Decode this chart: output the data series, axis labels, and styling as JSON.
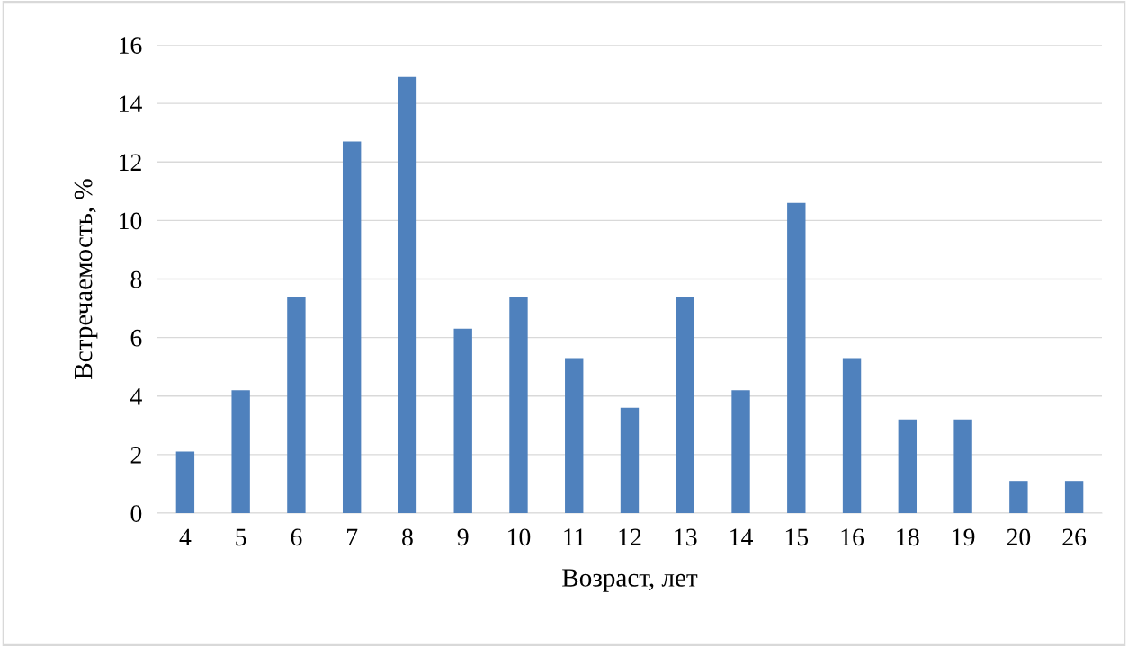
{
  "chart_data": {
    "type": "bar",
    "xlabel": "Возраст, лет",
    "ylabel": "Встречаемость, %",
    "categories": [
      "4",
      "5",
      "6",
      "7",
      "8",
      "9",
      "10",
      "11",
      "12",
      "13",
      "14",
      "15",
      "16",
      "18",
      "19",
      "20",
      "26"
    ],
    "values": [
      2.1,
      4.2,
      7.4,
      12.7,
      14.9,
      6.3,
      7.4,
      5.3,
      3.6,
      7.4,
      4.2,
      10.6,
      5.3,
      3.2,
      3.2,
      1.1,
      1.1
    ],
    "color": "#4f81bd",
    "ylim": [
      0,
      16
    ],
    "yticks": [
      0,
      2,
      4,
      6,
      8,
      10,
      12,
      14,
      16
    ],
    "grid": "y",
    "legend": false
  }
}
